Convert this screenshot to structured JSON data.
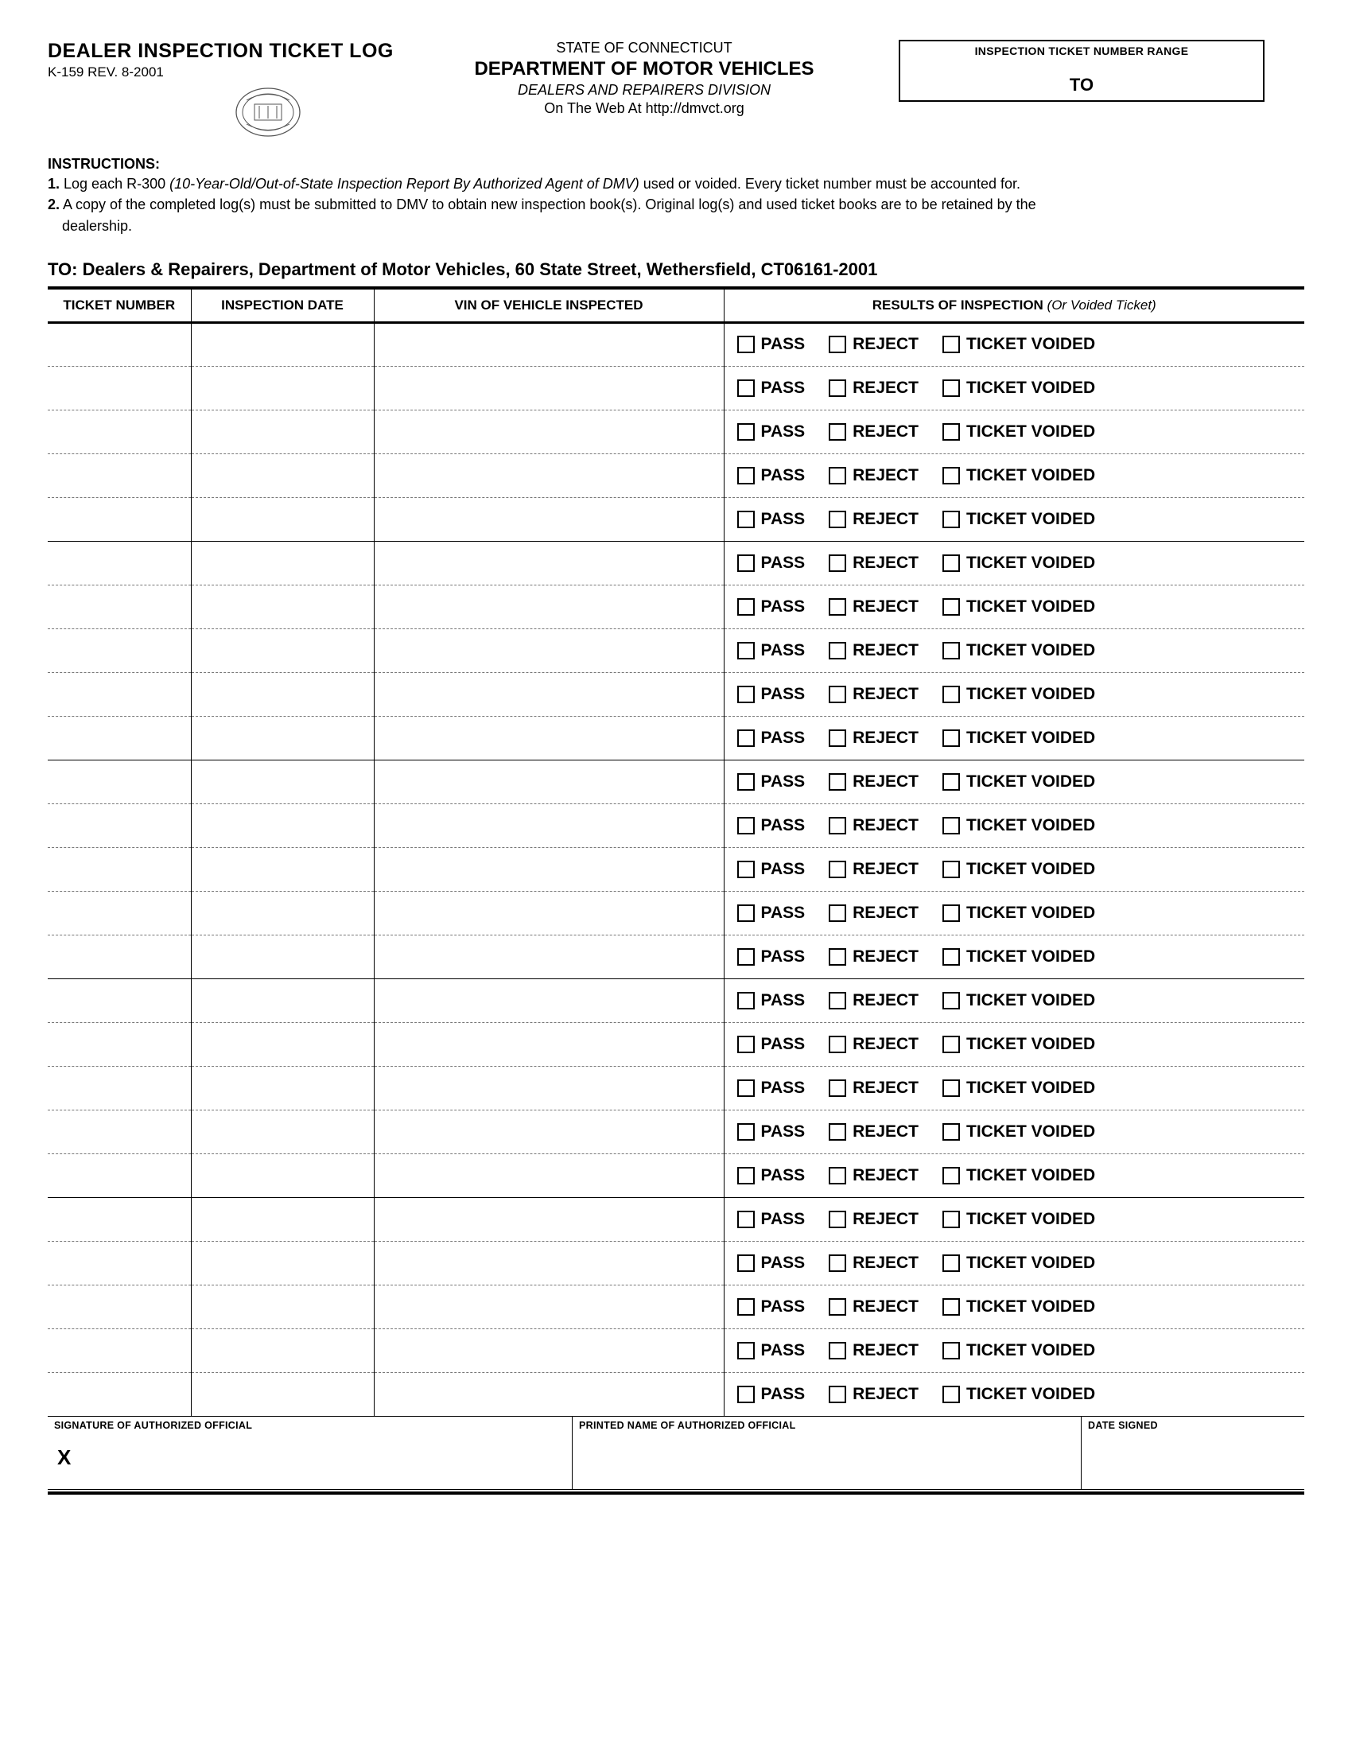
{
  "form": {
    "title": "DEALER INSPECTION TICKET LOG",
    "rev": "K-159 REV. 8-2001",
    "state": "STATE OF CONNECTICUT",
    "department": "DEPARTMENT OF MOTOR VEHICLES",
    "division": "DEALERS AND REPAIRERS DIVISION",
    "web": "On The Web At http://dmvct.org"
  },
  "range_box": {
    "label": "INSPECTION TICKET NUMBER RANGE",
    "to": "TO"
  },
  "instructions": {
    "title": "INSTRUCTIONS:",
    "line1_prefix": "1.",
    "line1_a": " Log each R-300 ",
    "line1_italic": "(10-Year-Old/Out-of-State Inspection Report By Authorized Agent of DMV)",
    "line1_b": " used or voided.  Every ticket number must be accounted for.",
    "line2_prefix": "2.",
    "line2_a": " A copy of the completed log(s) must be submitted to DMV to obtain new inspection book(s).  Original log(s) and used ticket books are to be retained by the",
    "line2_b": "dealership."
  },
  "to_line": "TO:  Dealers & Repairers, Department of Motor Vehicles, 60 State Street, Wethersfield, CT06161-2001",
  "table": {
    "headers": {
      "ticket": "TICKET NUMBER",
      "date": "INSPECTION DATE",
      "vin": "VIN OF VEHICLE INSPECTED",
      "results": "RESULTS OF INSPECTION",
      "results_note": " (Or Voided Ticket)"
    },
    "options": {
      "pass": "PASS",
      "reject": "REJECT",
      "voided": "TICKET VOIDED"
    },
    "row_count": 25
  },
  "signatures": {
    "sig_label": "SIGNATURE OF AUTHORIZED OFFICIAL",
    "sig_x": "X",
    "name_label": "PRINTED NAME OF AUTHORIZED OFFICIAL",
    "date_label": "DATE SIGNED"
  }
}
